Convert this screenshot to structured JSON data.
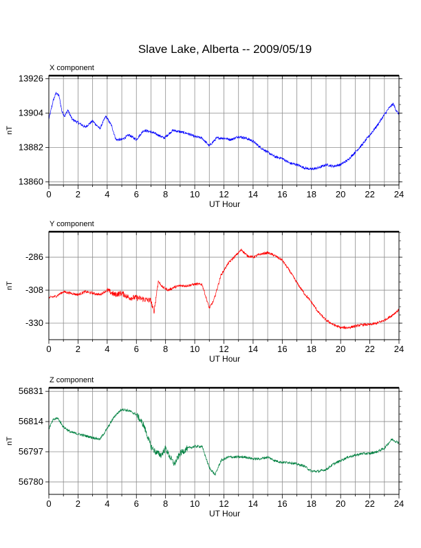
{
  "title": "Slave Lake, Alberta -- 2009/05/19",
  "chart_data": [
    {
      "type": "line",
      "title": "X component",
      "xlabel": "UT Hour",
      "ylabel": "nT",
      "xlim": [
        0,
        24
      ],
      "ylim": [
        13858,
        13928
      ],
      "x_ticks": [
        0,
        2,
        4,
        6,
        8,
        10,
        12,
        14,
        16,
        18,
        20,
        22,
        24
      ],
      "y_ticks": [
        13860,
        13882,
        13904,
        13926
      ],
      "grid": true,
      "color": "#0000ff",
      "series": [
        {
          "x": [
            0,
            0.3,
            0.5,
            0.7,
            0.9,
            1.1,
            1.3,
            1.6,
            2.0,
            2.5,
            3.0,
            3.5,
            3.9,
            4.3,
            4.6,
            5.0,
            5.5,
            6.0,
            6.5,
            7.0,
            7.5,
            7.9,
            8.5,
            9.0,
            9.5,
            10.0,
            10.5,
            11.0,
            11.5,
            12.0,
            12.5,
            13.0,
            13.5,
            14.0,
            14.5,
            15.0,
            15.5,
            16.0,
            16.5,
            17.0,
            17.5,
            18.0,
            18.5,
            19.0,
            19.5,
            20.0,
            20.5,
            21.0,
            21.5,
            22.0,
            22.5,
            23.0,
            23.3,
            23.6,
            23.8,
            24.0
          ],
          "y": [
            13900,
            13912,
            13917,
            13915,
            13905,
            13902,
            13906,
            13900,
            13898,
            13895,
            13899,
            13894,
            13902,
            13896,
            13887,
            13887,
            13890,
            13887,
            13893,
            13892,
            13890,
            13888,
            13893,
            13892,
            13891,
            13889,
            13888,
            13883,
            13888,
            13888,
            13887,
            13889,
            13888,
            13886,
            13882,
            13879,
            13876,
            13875,
            13872,
            13871,
            13869,
            13868,
            13869,
            13871,
            13870,
            13871,
            13874,
            13879,
            13884,
            13890,
            13896,
            13903,
            13907,
            13910,
            13906,
            13903
          ]
        }
      ]
    },
    {
      "type": "line",
      "title": "Y component",
      "xlabel": "UT Hour",
      "ylabel": "nT",
      "xlim": [
        0,
        24
      ],
      "ylim": [
        -341,
        -269
      ],
      "x_ticks": [
        0,
        2,
        4,
        6,
        8,
        10,
        12,
        14,
        16,
        18,
        20,
        22,
        24
      ],
      "y_ticks": [
        -286,
        -308,
        -330
      ],
      "grid": true,
      "color": "#ff0000",
      "series": [
        {
          "x": [
            0,
            0.5,
            1.0,
            1.5,
            2.0,
            2.5,
            3.0,
            3.5,
            4.0,
            4.5,
            5.0,
            5.5,
            6.0,
            6.5,
            7.0,
            7.2,
            7.5,
            7.8,
            8.2,
            8.6,
            9.0,
            9.5,
            10.0,
            10.5,
            11.0,
            11.3,
            11.8,
            12.3,
            12.8,
            13.2,
            13.6,
            14.0,
            14.5,
            15.0,
            15.5,
            16.0,
            16.5,
            17.0,
            17.5,
            18.0,
            18.5,
            19.0,
            19.5,
            20.0,
            20.5,
            21.0,
            21.5,
            22.0,
            22.5,
            23.0,
            23.5,
            24.0
          ],
          "y": [
            -313,
            -312,
            -309,
            -310,
            -311,
            -309,
            -310,
            -311,
            -308,
            -311,
            -310,
            -313,
            -313,
            -314,
            -315,
            -323,
            -302,
            -306,
            -308,
            -306,
            -305,
            -305,
            -304,
            -304,
            -320,
            -315,
            -298,
            -290,
            -285,
            -281,
            -285,
            -286,
            -284,
            -283,
            -285,
            -288,
            -295,
            -303,
            -310,
            -316,
            -323,
            -328,
            -331,
            -333,
            -333,
            -332,
            -331,
            -331,
            -330,
            -328,
            -325,
            -321
          ]
        }
      ]
    },
    {
      "type": "line",
      "title": "Z component",
      "xlabel": "UT Hour",
      "ylabel": "nT",
      "xlim": [
        0,
        24
      ],
      "ylim": [
        56773,
        56833
      ],
      "x_ticks": [
        0,
        2,
        4,
        6,
        8,
        10,
        12,
        14,
        16,
        18,
        20,
        22,
        24
      ],
      "y_ticks": [
        56780,
        56797,
        56814,
        56831
      ],
      "grid": true,
      "color": "#008040",
      "series": [
        {
          "x": [
            0,
            0.3,
            0.6,
            1.0,
            1.5,
            2.0,
            2.5,
            3.0,
            3.5,
            4.0,
            4.5,
            5.0,
            5.5,
            6.0,
            6.5,
            7.0,
            7.3,
            7.7,
            8.0,
            8.3,
            8.6,
            9.0,
            9.5,
            10.0,
            10.5,
            11.0,
            11.4,
            11.8,
            12.3,
            12.8,
            13.5,
            14.0,
            14.5,
            15.0,
            15.5,
            16.0,
            16.5,
            17.0,
            17.5,
            18.0,
            18.5,
            19.0,
            19.5,
            20.0,
            20.5,
            21.0,
            21.5,
            22.0,
            22.5,
            23.0,
            23.5,
            24.0
          ],
          "y": [
            56810,
            56815,
            56816,
            56811,
            56808,
            56807,
            56806,
            56805,
            56804,
            56810,
            56817,
            56821,
            56820,
            56818,
            56812,
            56800,
            56797,
            56795,
            56799,
            56794,
            56790,
            56796,
            56799,
            56800,
            56800,
            56788,
            56784,
            56792,
            56794,
            56794,
            56794,
            56793,
            56793,
            56794,
            56792,
            56791,
            56791,
            56790,
            56789,
            56786,
            56786,
            56787,
            56790,
            56792,
            56794,
            56795,
            56796,
            56796,
            56797,
            56799,
            56804,
            56802
          ]
        }
      ]
    }
  ]
}
